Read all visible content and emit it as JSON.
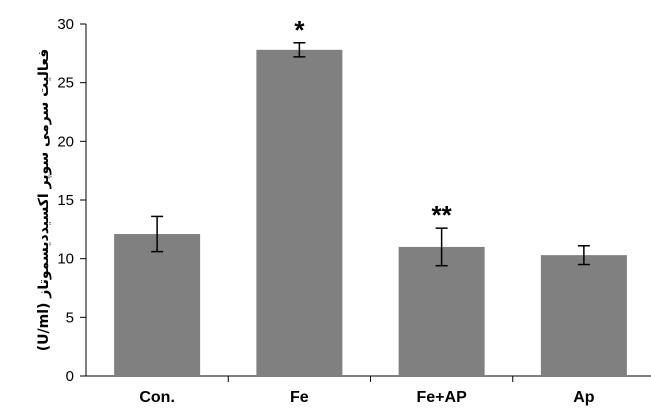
{
  "chart_data": {
    "type": "bar",
    "categories": [
      "Con.",
      "Fe",
      "Fe+AP",
      "Ap"
    ],
    "values": [
      12.1,
      27.8,
      11.0,
      10.3
    ],
    "error": [
      1.5,
      0.6,
      1.6,
      0.8
    ],
    "annotations": [
      "",
      "*",
      "**",
      ""
    ],
    "ylabel": "فعالیت سرمی سوپر اکسیددیسموتاز (U/ml)",
    "xlabel": "",
    "ylim": [
      0,
      30
    ],
    "yticks": [
      0,
      5,
      10,
      15,
      20,
      25,
      30
    ],
    "bar_color": "#808080",
    "grid": false,
    "legend": "none"
  }
}
